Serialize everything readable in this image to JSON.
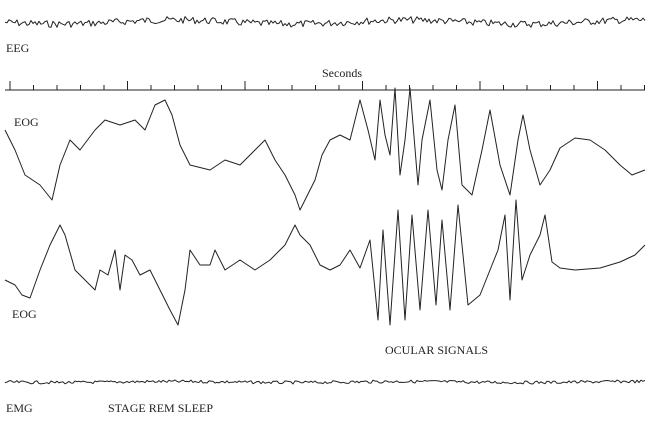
{
  "labels": {
    "eeg": "EEG",
    "seconds": "Seconds",
    "eog_top": "EOG",
    "eog_bottom": "EOG",
    "ocular": "OCULAR SIGNALS",
    "emg": "EMG",
    "stage": "STAGE REM SLEEP"
  }
}
